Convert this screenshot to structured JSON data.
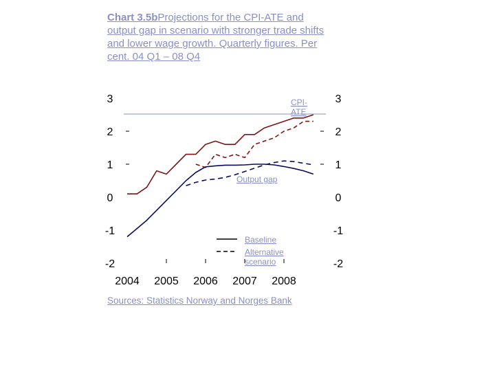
{
  "title": {
    "lead": "Chart 3.5b",
    "rest": "Projections for the CPI-ATE and output gap in scenario with stronger trade shifts and lower wage growth. Quarterly figures. Per cent. 04 Q1 – 08 Q4"
  },
  "source": "Sources: Statistics Norway and Norges Bank",
  "colors": {
    "cpi": "#7a1414",
    "gap": "#0a0a5a",
    "label": "#8a8fc7"
  },
  "chart_data": {
    "type": "line",
    "ylim": [
      -2,
      3
    ],
    "yticks": [
      "3",
      "2",
      "1",
      "0",
      "-1",
      "-2"
    ],
    "xticks": [
      "2004",
      "2005",
      "2006",
      "2007",
      "2008"
    ],
    "annotations": {
      "cpi": "CPI-ATE",
      "gap": "Output gap"
    },
    "legend": {
      "baseline": "Baseline",
      "alt": "Alternative scenario"
    },
    "series": [
      {
        "id": "cpi-baseline",
        "x": [
          2004.0,
          2004.25,
          2004.5,
          2004.75,
          2005.0,
          2005.25,
          2005.5,
          2005.75,
          2006.0,
          2006.25,
          2006.5,
          2006.75,
          2007.0,
          2007.25,
          2007.5,
          2007.75,
          2008.0,
          2008.25,
          2008.5,
          2008.75
        ],
        "values": [
          0.1,
          0.1,
          0.3,
          0.8,
          0.7,
          1.0,
          1.3,
          1.3,
          1.6,
          1.7,
          1.6,
          1.6,
          1.9,
          1.9,
          2.1,
          2.2,
          2.3,
          2.4,
          2.4,
          2.5
        ]
      },
      {
        "id": "cpi-alt",
        "x": [
          2005.75,
          2006.0,
          2006.25,
          2006.5,
          2006.75,
          2007.0,
          2007.25,
          2007.5,
          2007.75,
          2008.0,
          2008.25,
          2008.5,
          2008.75
        ],
        "values": [
          1.0,
          0.9,
          1.3,
          1.2,
          1.3,
          1.2,
          1.6,
          1.7,
          1.8,
          2.0,
          2.1,
          2.3,
          2.3
        ]
      },
      {
        "id": "gap-baseline",
        "x": [
          2004.0,
          2004.25,
          2004.5,
          2004.75,
          2005.0,
          2005.25,
          2005.5,
          2005.75,
          2006.0,
          2006.25,
          2006.5,
          2006.75,
          2007.0,
          2007.25,
          2007.5,
          2007.75,
          2008.0,
          2008.25,
          2008.5,
          2008.75
        ],
        "values": [
          -1.2,
          -0.95,
          -0.7,
          -0.4,
          -0.1,
          0.2,
          0.5,
          0.75,
          0.92,
          0.95,
          0.97,
          0.97,
          0.98,
          1.0,
          1.0,
          0.98,
          0.93,
          0.87,
          0.8,
          0.7
        ]
      },
      {
        "id": "gap-alt",
        "x": [
          2005.5,
          2005.75,
          2006.0,
          2006.25,
          2006.5,
          2006.75,
          2007.0,
          2007.25,
          2007.5,
          2007.75,
          2008.0,
          2008.25,
          2008.5,
          2008.75
        ],
        "values": [
          0.35,
          0.45,
          0.52,
          0.55,
          0.6,
          0.68,
          0.78,
          0.88,
          0.98,
          1.05,
          1.1,
          1.08,
          1.03,
          0.98
        ]
      }
    ]
  }
}
